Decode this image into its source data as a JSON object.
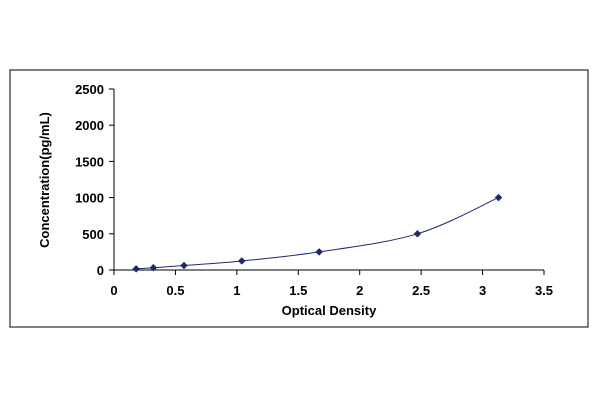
{
  "chart_data": {
    "type": "scatter",
    "title": "",
    "xlabel": "Optical Density",
    "ylabel": "Concentration(pg/mL)",
    "xlim": [
      0,
      3.5
    ],
    "ylim": [
      0,
      2500
    ],
    "x_ticks": [
      "0",
      "0.5",
      "1",
      "1.5",
      "2",
      "2.5",
      "3",
      "3.5"
    ],
    "y_ticks": [
      "0",
      "500",
      "1000",
      "1500",
      "2000",
      "2500"
    ],
    "grid": false,
    "legend": "none",
    "trendline": "smooth curve through points",
    "series": [
      {
        "x": [
          0.18,
          0.32,
          0.57,
          1.04,
          1.67,
          2.47,
          3.13
        ],
        "y": [
          15.6,
          31.2,
          62.5,
          125,
          250,
          500,
          1000
        ],
        "marker": "diamond"
      }
    ],
    "colors": {
      "marker": "#1f2a6b",
      "curve": "#1f2a6b",
      "axis": "#000000",
      "frame": "#000000"
    }
  }
}
